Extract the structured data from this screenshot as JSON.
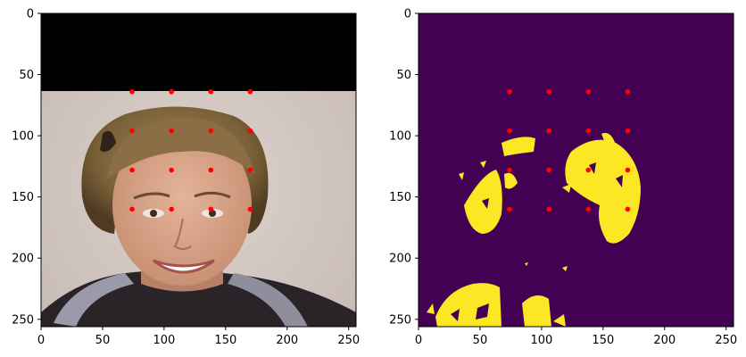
{
  "chart_data": [
    {
      "type": "scatter",
      "panel": "left",
      "image": "RGB photograph of a woman (astronaut portrait); top rows 0-63 masked to black",
      "xlim": [
        0,
        256
      ],
      "ylim": [
        256,
        0
      ],
      "y_inverted": true,
      "xticks": [
        0,
        50,
        100,
        150,
        200,
        250
      ],
      "yticks": [
        0,
        50,
        100,
        150,
        200,
        250
      ],
      "xtick_labels": [
        "0",
        "50",
        "100",
        "150",
        "200",
        "250"
      ],
      "ytick_labels": [
        "0",
        "50",
        "100",
        "150",
        "200",
        "250"
      ],
      "black_band_rows": [
        0,
        63
      ],
      "marker_color": "#ff0000",
      "points": {
        "x": [
          74,
          106,
          138,
          170,
          74,
          106,
          138,
          170,
          74,
          106,
          138,
          170,
          74,
          106,
          138,
          170
        ],
        "y": [
          64,
          64,
          64,
          64,
          96,
          96,
          96,
          96,
          128,
          128,
          128,
          128,
          160,
          160,
          160,
          160
        ]
      }
    },
    {
      "type": "scatter",
      "panel": "right",
      "image": "binary mask (viridis colormap): purple background #440154, yellow #fde725 foreground regions",
      "xlim": [
        0,
        256
      ],
      "ylim": [
        256,
        0
      ],
      "y_inverted": true,
      "xticks": [
        0,
        50,
        100,
        150,
        200,
        250
      ],
      "yticks": [
        0,
        50,
        100,
        150,
        200,
        250
      ],
      "xtick_labels": [
        "0",
        "50",
        "100",
        "150",
        "200",
        "250"
      ],
      "ytick_labels": [
        "0",
        "50",
        "100",
        "150",
        "200",
        "250"
      ],
      "colormap": {
        "low": "#440154",
        "high": "#fde725"
      },
      "marker_color": "#ff0000",
      "points": {
        "x": [
          74,
          106,
          138,
          170,
          74,
          106,
          138,
          170,
          74,
          106,
          138,
          170,
          74,
          106,
          138,
          170
        ],
        "y": [
          64,
          64,
          64,
          64,
          96,
          96,
          96,
          96,
          128,
          128,
          128,
          128,
          160,
          160,
          160,
          160
        ]
      }
    }
  ]
}
